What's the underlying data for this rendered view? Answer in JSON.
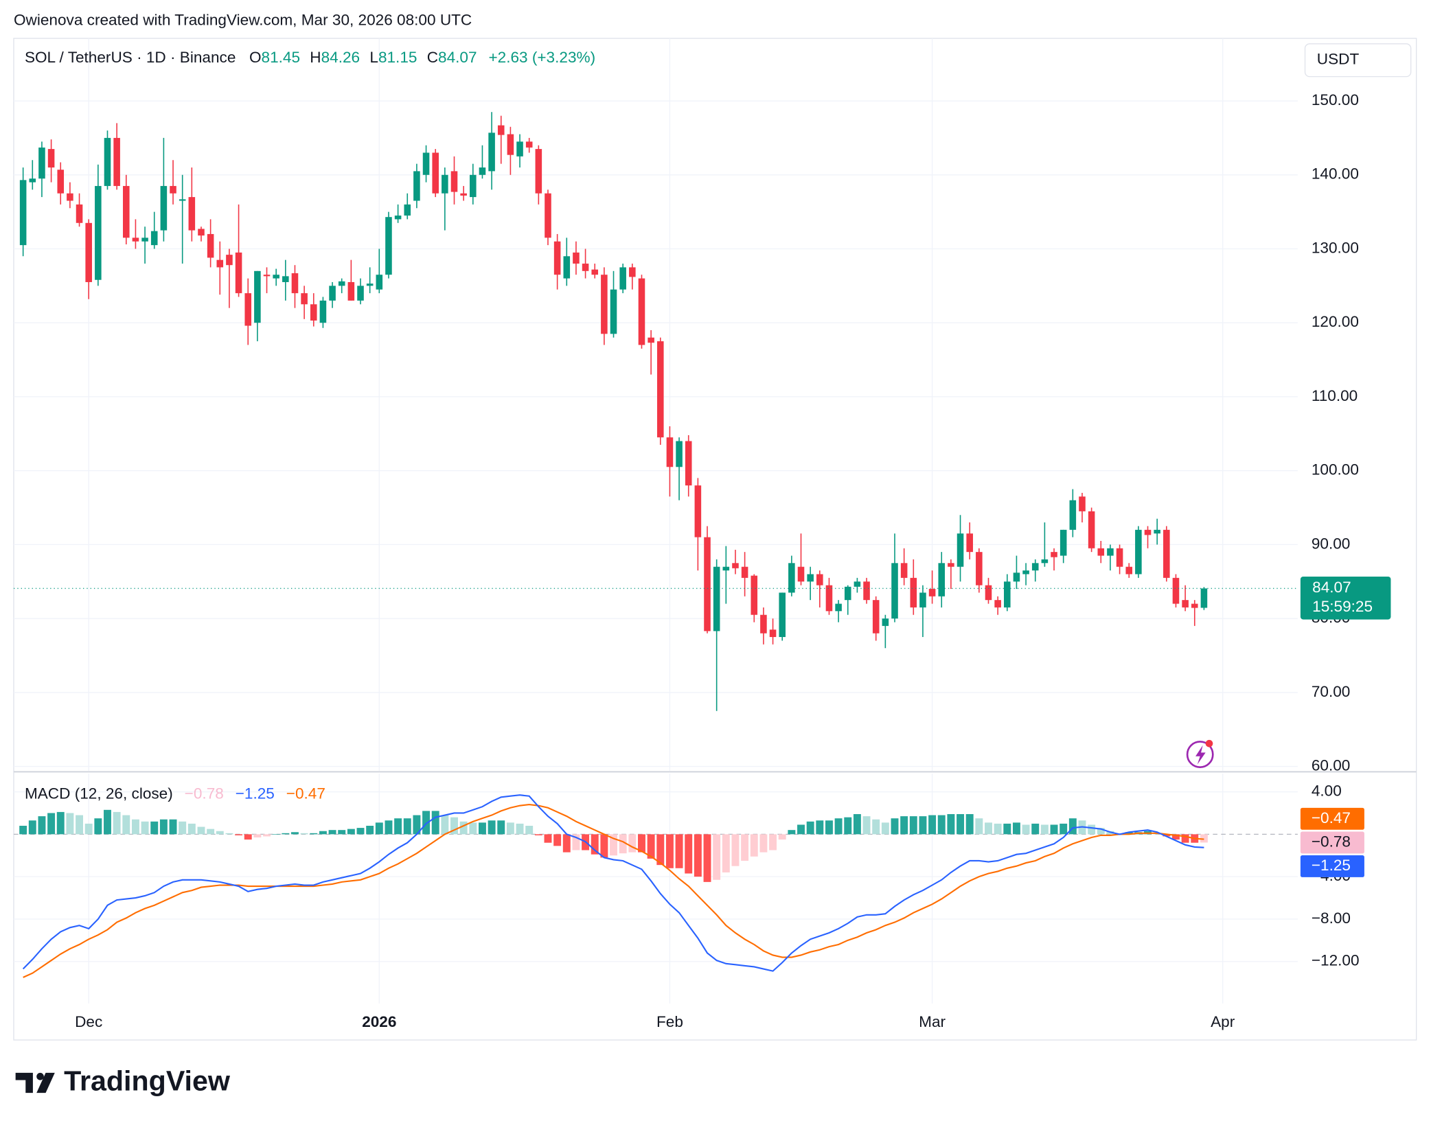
{
  "header": {
    "attribution": "Owienova created with TradingView.com, Mar 30, 2026 08:00 UTC",
    "symbol": "SOL / TetherUS · 1D · Binance",
    "ohlc_labels": {
      "open": "O",
      "high": "H",
      "low": "L",
      "close": "C"
    },
    "change": "+2.63 (+3.23%)",
    "currency": "USDT",
    "countdown": "15:59:25"
  },
  "chart_data": [
    {
      "type": "candlestick",
      "up_color": "#089981",
      "down_color": "#f23645",
      "grid": true,
      "xlim": [
        -1,
        136
      ],
      "xticks": [
        {
          "value": 7,
          "label": "Dec"
        },
        {
          "value": 38,
          "label": "2026"
        },
        {
          "value": 69,
          "label": "Feb"
        },
        {
          "value": 97,
          "label": "Mar"
        },
        {
          "value": 128,
          "label": "Apr"
        }
      ],
      "ylim": [
        59.4,
        158.1
      ],
      "yticks": [
        {
          "value": 60,
          "label": "60.00"
        },
        {
          "value": 70,
          "label": "70.00"
        },
        {
          "value": 80,
          "label": "80.00"
        },
        {
          "value": 90,
          "label": "90.00"
        },
        {
          "value": 100,
          "label": "100.00"
        },
        {
          "value": 110,
          "label": "110.00"
        },
        {
          "value": 120,
          "label": "120.00"
        },
        {
          "value": 130,
          "label": "130.00"
        },
        {
          "value": 140,
          "label": "140.00"
        },
        {
          "value": 150,
          "label": "150.00"
        }
      ],
      "open": [
        130.5,
        139,
        139.5,
        143.5,
        140.7,
        137.5,
        136,
        133.5,
        125.8,
        138.5,
        145,
        138.5,
        131.5,
        131,
        130.5,
        132.5,
        138.5,
        136.5,
        137,
        132.7,
        132,
        128.5,
        129.2,
        129.5,
        124,
        120,
        126.5,
        126,
        125.5,
        126.7,
        124,
        122.5,
        120,
        123,
        125,
        125.5,
        123,
        125,
        124.5,
        126.5,
        134,
        134.5,
        136.5,
        140,
        143,
        137.5,
        140.5,
        137.5,
        137,
        140,
        140.5,
        146.7,
        145.5,
        142.5,
        144.5,
        143.5,
        137.5,
        131,
        126,
        129.5,
        128,
        127.2,
        126.5,
        118.5,
        124.5,
        127.5,
        126,
        118,
        117.5,
        104.5,
        100.5,
        104,
        98,
        91,
        78.3,
        86.5,
        87.5,
        87,
        85.8,
        80.5,
        78.5,
        77.5,
        83.5,
        87,
        85,
        86,
        84.5,
        81,
        82.5,
        84.3,
        85,
        82.5,
        79,
        80,
        87.5,
        85.5,
        81.5,
        84,
        83,
        87.5,
        87,
        91.5,
        89,
        84.5,
        82.5,
        81.5,
        85,
        86,
        86.5,
        87.5,
        89,
        88.5,
        92,
        96.5,
        94.5,
        89.5,
        88.5,
        89.5,
        87,
        86,
        92,
        91.5,
        92,
        85.5,
        82.5,
        82,
        81.45
      ],
      "high": [
        141,
        142,
        144.5,
        144.8,
        141.7,
        139,
        137.5,
        134,
        141.4,
        146,
        147,
        140,
        134,
        133,
        135,
        145,
        142,
        140,
        141,
        133,
        134,
        131,
        130,
        136,
        126,
        127,
        127.5,
        127.3,
        128.5,
        127.8,
        125,
        124,
        123.5,
        125.5,
        126,
        128.5,
        126,
        127.5,
        130,
        135,
        136,
        137.5,
        141.5,
        144,
        143.5,
        141,
        142.5,
        138.5,
        141.5,
        144,
        148.5,
        148,
        146.5,
        145.5,
        145,
        144,
        138,
        132,
        131.5,
        131,
        130,
        128,
        127.5,
        127,
        128,
        128,
        126.5,
        119,
        118,
        106,
        104.5,
        104.8,
        99,
        92.5,
        88,
        89.8,
        89.3,
        89,
        86,
        81.5,
        80,
        83.5,
        88.5,
        91.5,
        87,
        86.5,
        85.5,
        82.5,
        84.5,
        85.5,
        85.5,
        83,
        80.5,
        91.5,
        89.5,
        88,
        84.5,
        86.5,
        89,
        88,
        94,
        93,
        89.5,
        85.5,
        83,
        86,
        88.5,
        87.5,
        88,
        93,
        89.5,
        92,
        97.5,
        97,
        95,
        90.5,
        90,
        90,
        87.5,
        92.5,
        92.5,
        93.5,
        92.5,
        86,
        84.5,
        82.5,
        84.26
      ],
      "low": [
        129,
        138,
        137,
        139,
        136,
        135.5,
        133,
        123.2,
        125,
        138,
        138,
        130.6,
        130,
        128,
        130,
        131,
        136,
        128,
        131,
        131,
        127.5,
        123.8,
        122,
        123.5,
        117,
        117.5,
        124,
        125,
        123,
        122,
        120.5,
        119.5,
        119.3,
        122,
        124,
        123,
        122.5,
        124,
        124,
        126,
        133.5,
        134,
        135.5,
        139,
        137,
        132.5,
        136,
        136.5,
        136,
        139.5,
        138,
        141.5,
        140,
        141,
        143,
        136,
        130.5,
        124.5,
        125,
        126.5,
        126,
        126,
        117,
        118,
        124,
        124.5,
        116.5,
        113,
        103.5,
        96.5,
        96,
        96.5,
        86.5,
        78,
        67.5,
        82,
        86,
        83,
        79.5,
        76.5,
        76.5,
        77,
        83,
        84.5,
        82.5,
        81.5,
        80.5,
        79.5,
        80.5,
        83.5,
        82,
        77,
        76,
        79.5,
        84.5,
        80.5,
        77.5,
        82,
        81.5,
        84,
        85,
        88,
        83.5,
        82,
        80.5,
        81,
        84,
        84.5,
        85,
        87,
        86.5,
        87.5,
        91,
        93,
        89,
        87.5,
        86.5,
        86,
        85.5,
        85.5,
        89.5,
        90,
        85,
        81.5,
        81,
        79,
        81.15
      ],
      "close": [
        139.3,
        139.5,
        143.7,
        141,
        137.5,
        136.5,
        133.5,
        125.5,
        138.5,
        145,
        138.5,
        131.5,
        131,
        131.5,
        132.4,
        138.5,
        137.5,
        136.7,
        132.5,
        131.8,
        128.8,
        127.5,
        127.8,
        124,
        119.6,
        127,
        126.3,
        126.5,
        126.3,
        124,
        122.5,
        120.3,
        123,
        125,
        125.6,
        123,
        125,
        125.3,
        126.5,
        134.3,
        134.5,
        136,
        140.5,
        143,
        137.5,
        140,
        137.7,
        137.2,
        140,
        141,
        145.7,
        145.4,
        142.7,
        144.5,
        143.7,
        137.5,
        131.5,
        126.5,
        129,
        128,
        127,
        126.5,
        118.5,
        124.5,
        127.5,
        126.2,
        117,
        117.3,
        104.5,
        100.5,
        104,
        98,
        91,
        78.3,
        87,
        87,
        86.8,
        85.5,
        80.5,
        78,
        77.5,
        83.5,
        87.5,
        85,
        86,
        84.5,
        81,
        82,
        84.3,
        85,
        82.5,
        78,
        80,
        87.5,
        85.5,
        81.5,
        83.5,
        83,
        87.5,
        87,
        91.5,
        89,
        84.5,
        82.5,
        81.5,
        85,
        86.2,
        86.5,
        87.5,
        88,
        88.3,
        92,
        96,
        94.5,
        89.5,
        88.5,
        89.5,
        87,
        86,
        92,
        91.3,
        92,
        85.5,
        82,
        81.5,
        81.44,
        84.07
      ]
    },
    {
      "type": "macd",
      "title": "MACD (12, 26, close)",
      "ylim": [
        -15.96,
        5.72
      ],
      "yticks": [
        {
          "value": 4,
          "label": "4.00"
        },
        {
          "value": -4,
          "label": "−4.00"
        },
        {
          "value": -8,
          "label": "−8.00"
        },
        {
          "value": -12,
          "label": "−12.00"
        }
      ],
      "histogram": {
        "colors": {
          "up_rising": "#26a69a",
          "up_falling": "#b2dfdb",
          "down_falling": "#ff5252",
          "down_rising": "#ffcdd2"
        },
        "label_color": "#f8bbd0",
        "last_label": "−0.78",
        "values": [
          0.8,
          1.3,
          1.7,
          2.0,
          2.1,
          2.0,
          1.8,
          1.0,
          1.5,
          2.3,
          2.1,
          1.8,
          1.4,
          1.2,
          1.2,
          1.4,
          1.4,
          1.2,
          1.0,
          0.7,
          0.5,
          0.3,
          0.1,
          -0.1,
          -0.5,
          -0.3,
          -0.2,
          0.0,
          0.1,
          0.2,
          0.1,
          0.1,
          0.3,
          0.4,
          0.4,
          0.5,
          0.6,
          0.8,
          1.1,
          1.3,
          1.5,
          1.5,
          1.8,
          2.2,
          2.2,
          1.8,
          1.6,
          1.2,
          1.1,
          1.1,
          1.3,
          1.3,
          1.1,
          1.0,
          0.8,
          -0.1,
          -0.8,
          -1.1,
          -1.7,
          -1.5,
          -1.5,
          -1.9,
          -2.2,
          -2.0,
          -1.8,
          -1.7,
          -1.7,
          -2.3,
          -2.9,
          -3.2,
          -3.2,
          -3.7,
          -4.0,
          -4.5,
          -4.3,
          -3.6,
          -3.0,
          -2.5,
          -2.1,
          -1.7,
          -1.5,
          -0.5,
          0.4,
          0.9,
          1.2,
          1.3,
          1.3,
          1.5,
          1.6,
          1.9,
          1.7,
          1.4,
          1.1,
          1.5,
          1.7,
          1.7,
          1.7,
          1.8,
          1.8,
          1.9,
          1.9,
          1.9,
          1.5,
          1.1,
          1.0,
          1.0,
          1.1,
          0.9,
          1.0,
          0.9,
          0.9,
          1.0,
          1.5,
          1.3,
          0.9,
          0.6,
          0.3,
          0.0,
          0.2,
          0.2,
          0.3,
          0.1,
          -0.2,
          -0.5,
          -0.8,
          -0.8,
          -0.78
        ]
      },
      "macd": {
        "color": "#2962ff",
        "last_label": "−1.25",
        "values": [
          -12.7,
          -11.8,
          -10.8,
          -9.9,
          -9.2,
          -8.8,
          -8.6,
          -8.9,
          -8.0,
          -6.7,
          -6.2,
          -6.1,
          -6.0,
          -5.8,
          -5.5,
          -4.9,
          -4.5,
          -4.3,
          -4.3,
          -4.3,
          -4.4,
          -4.5,
          -4.7,
          -4.9,
          -5.4,
          -5.2,
          -5.1,
          -4.9,
          -4.8,
          -4.7,
          -4.8,
          -4.8,
          -4.5,
          -4.3,
          -4.1,
          -3.9,
          -3.7,
          -3.2,
          -2.6,
          -1.9,
          -1.3,
          -0.8,
          0.0,
          1.0,
          1.6,
          1.8,
          2.0,
          2.0,
          2.3,
          2.6,
          3.1,
          3.5,
          3.6,
          3.7,
          3.6,
          2.6,
          1.7,
          1.0,
          0.0,
          -0.3,
          -0.7,
          -1.5,
          -2.2,
          -2.4,
          -2.5,
          -2.9,
          -3.3,
          -4.4,
          -5.6,
          -6.6,
          -7.4,
          -8.6,
          -9.8,
          -11.2,
          -11.9,
          -12.2,
          -12.3,
          -12.4,
          -12.5,
          -12.7,
          -12.9,
          -12.1,
          -11.2,
          -10.5,
          -9.9,
          -9.6,
          -9.3,
          -8.9,
          -8.4,
          -7.8,
          -7.6,
          -7.6,
          -7.5,
          -6.8,
          -6.2,
          -5.7,
          -5.3,
          -4.8,
          -4.3,
          -3.6,
          -3.0,
          -2.5,
          -2.5,
          -2.6,
          -2.5,
          -2.2,
          -1.9,
          -1.8,
          -1.5,
          -1.2,
          -0.9,
          -0.3,
          0.6,
          0.7,
          0.6,
          0.5,
          0.2,
          0.0,
          0.2,
          0.3,
          0.4,
          0.2,
          -0.2,
          -0.6,
          -1.0,
          -1.2,
          -1.25
        ]
      },
      "signal": {
        "color": "#ff6d00",
        "last_label": "−0.47",
        "values": [
          -13.5,
          -13.1,
          -12.5,
          -11.9,
          -11.3,
          -10.8,
          -10.4,
          -9.9,
          -9.5,
          -9.0,
          -8.3,
          -7.9,
          -7.4,
          -7.0,
          -6.7,
          -6.3,
          -5.9,
          -5.5,
          -5.3,
          -5.0,
          -4.9,
          -4.8,
          -4.8,
          -4.8,
          -4.9,
          -4.9,
          -4.9,
          -4.9,
          -4.9,
          -4.9,
          -4.9,
          -4.9,
          -4.8,
          -4.7,
          -4.5,
          -4.4,
          -4.3,
          -4.0,
          -3.7,
          -3.2,
          -2.8,
          -2.3,
          -1.8,
          -1.2,
          -0.6,
          0.0,
          0.4,
          0.8,
          1.2,
          1.5,
          1.8,
          2.2,
          2.5,
          2.7,
          2.8,
          2.7,
          2.5,
          2.1,
          1.7,
          1.2,
          0.8,
          0.4,
          0.0,
          -0.4,
          -0.7,
          -1.2,
          -1.6,
          -2.1,
          -2.7,
          -3.4,
          -4.2,
          -4.9,
          -5.8,
          -6.7,
          -7.6,
          -8.6,
          -9.3,
          -9.9,
          -10.4,
          -11.0,
          -11.4,
          -11.6,
          -11.6,
          -11.4,
          -11.1,
          -10.9,
          -10.6,
          -10.4,
          -10.0,
          -9.7,
          -9.3,
          -9.0,
          -8.6,
          -8.3,
          -7.9,
          -7.4,
          -7.0,
          -6.6,
          -6.1,
          -5.5,
          -4.9,
          -4.4,
          -4.0,
          -3.7,
          -3.5,
          -3.2,
          -3.0,
          -2.7,
          -2.5,
          -2.1,
          -1.8,
          -1.3,
          -0.9,
          -0.6,
          -0.3,
          -0.1,
          -0.1,
          0.0,
          0.0,
          0.1,
          0.1,
          0.1,
          0.0,
          -0.1,
          -0.2,
          -0.4,
          -0.47
        ]
      }
    }
  ],
  "footer": {
    "brand": "TradingView"
  }
}
